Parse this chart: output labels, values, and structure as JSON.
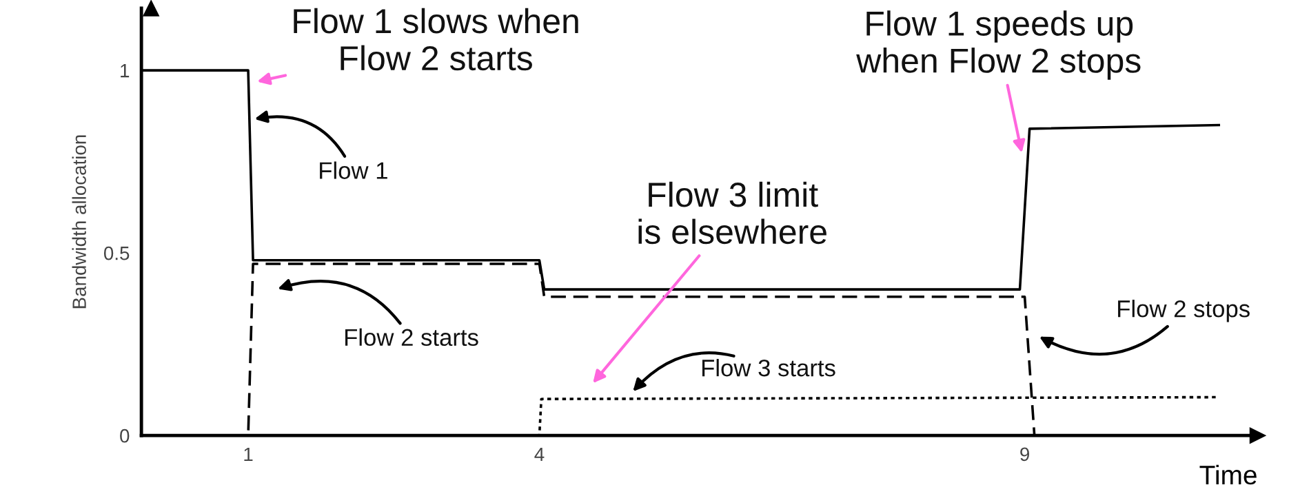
{
  "chart_data": {
    "type": "line",
    "xlabel": "Time",
    "ylabel": "Bandwidth allocation",
    "xlim": [
      -0.1,
      11.4
    ],
    "ylim": [
      0,
      1.17
    ],
    "xticks": [
      1,
      4,
      9
    ],
    "yticks": [
      0,
      0.5,
      1
    ],
    "grid": false,
    "series": [
      {
        "color": "#000000",
        "line_style": "solid",
        "x": [
          -0.1,
          1,
          1.05,
          4,
          4.05,
          8.95,
          9.05,
          11
        ],
        "values": [
          1,
          1,
          0.48,
          0.48,
          0.4,
          0.4,
          0.84,
          0.85
        ]
      },
      {
        "color": "#000000",
        "line_style": "dashed",
        "x": [
          -0.1,
          1,
          1.05,
          4,
          4.05,
          9,
          9.1,
          11
        ],
        "values": [
          0,
          0,
          0.47,
          0.47,
          0.38,
          0.38,
          0,
          0
        ]
      },
      {
        "color": "#000000",
        "line_style": "dotted",
        "x": [
          -0.1,
          4,
          4.02,
          11
        ],
        "values": [
          0,
          0,
          0.1,
          0.105
        ]
      }
    ],
    "annotations": [
      "Flow 1 slows when\nFlow 2 starts",
      "Flow 1",
      "Flow 2 starts",
      "Flow 3 limit\nis elsewhere",
      "Flow 3 starts",
      "Flow 2 stops",
      "Flow 1 speeds up\nwhen Flow 2 stops"
    ]
  }
}
